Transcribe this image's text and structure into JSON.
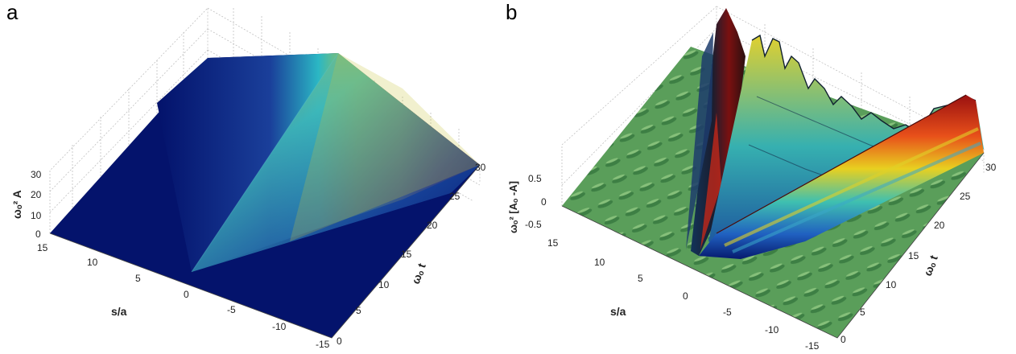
{
  "panels": [
    {
      "letter": "a",
      "zlabel": "ωₒ² A",
      "xlabel": "s/a",
      "ylabel": "ωₒ t",
      "x_ticks": [
        "15",
        "10",
        "5",
        "0",
        "-5",
        "-10",
        "-15"
      ],
      "y_ticks": [
        "0",
        "5",
        "10",
        "15",
        "20",
        "25",
        "30"
      ],
      "z_ticks": [
        "30",
        "20",
        "10",
        "0"
      ]
    },
    {
      "letter": "b",
      "zlabel": "ωₒ² [Aₒ -A]",
      "xlabel": "s/a",
      "ylabel": "ωₒ t",
      "x_ticks": [
        "15",
        "10",
        "5",
        "0",
        "-5",
        "-10",
        "-15"
      ],
      "y_ticks": [
        "0",
        "5",
        "10",
        "15",
        "20",
        "25",
        "30"
      ],
      "z_ticks": [
        "0.5",
        "0",
        "-0.5"
      ]
    }
  ],
  "chart_data": [
    {
      "type": "surface",
      "title": "",
      "xlabel": "s/a",
      "ylabel": "ωₒ t",
      "zlabel": "ωₒ² A",
      "xlim": [
        -15,
        15
      ],
      "ylim": [
        0,
        30
      ],
      "zlim": [
        0,
        30
      ],
      "colormap": "jet",
      "grid": true
    },
    {
      "type": "surface",
      "title": "",
      "xlabel": "s/a",
      "ylabel": "ωₒ t",
      "zlabel": "ωₒ² [Aₒ -A]",
      "xlim": [
        -15,
        15
      ],
      "ylim": [
        0,
        30
      ],
      "zlim": [
        -0.5,
        0.5
      ],
      "colormap": "jet",
      "grid": true
    }
  ]
}
